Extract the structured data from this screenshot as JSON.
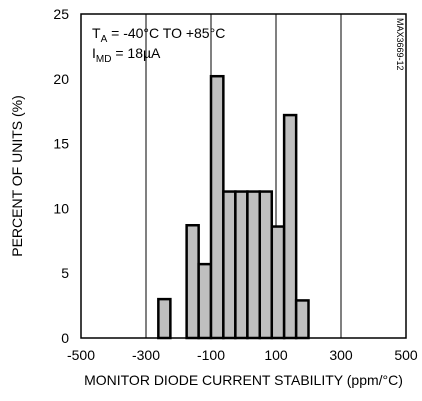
{
  "chart_data": {
    "type": "bar",
    "xlabel": "MONITOR DIODE CURRENT STABILITY (ppm/°C)",
    "ylabel": "PERCENT OF UNITS (%)",
    "xlim": [
      -500,
      500
    ],
    "ylim": [
      0,
      25
    ],
    "x_ticks": [
      -500,
      -300,
      -100,
      100,
      300,
      500
    ],
    "y_ticks": [
      0,
      5,
      10,
      15,
      20,
      25
    ],
    "grid": "vertical-at-x-ticks",
    "bar_color": "#bfbfbf",
    "bars": [
      {
        "x0": -262,
        "x1": -225,
        "value": 3
      },
      {
        "x0": -175,
        "x1": -138,
        "value": 8.7
      },
      {
        "x0": -138,
        "x1": -100,
        "value": 5.7
      },
      {
        "x0": -100,
        "x1": -62,
        "value": 20.2
      },
      {
        "x0": -62,
        "x1": -25,
        "value": 11.3
      },
      {
        "x0": -25,
        "x1": 12,
        "value": 11.3
      },
      {
        "x0": 12,
        "x1": 50,
        "value": 11.3
      },
      {
        "x0": 50,
        "x1": 87,
        "value": 11.3
      },
      {
        "x0": 87,
        "x1": 125,
        "value": 8.6
      },
      {
        "x0": 125,
        "x1": 162,
        "value": 17.2
      },
      {
        "x0": 162,
        "x1": 200,
        "value": 2.9
      }
    ],
    "annotations": {
      "line1_main": "T",
      "line1_sub": "A",
      "line1_rest": " = -40°C TO +85°C",
      "line2_main": "I",
      "line2_sub": "MD",
      "line2_rest": " = 18µA"
    },
    "figure_id": "MAX3669-12"
  }
}
